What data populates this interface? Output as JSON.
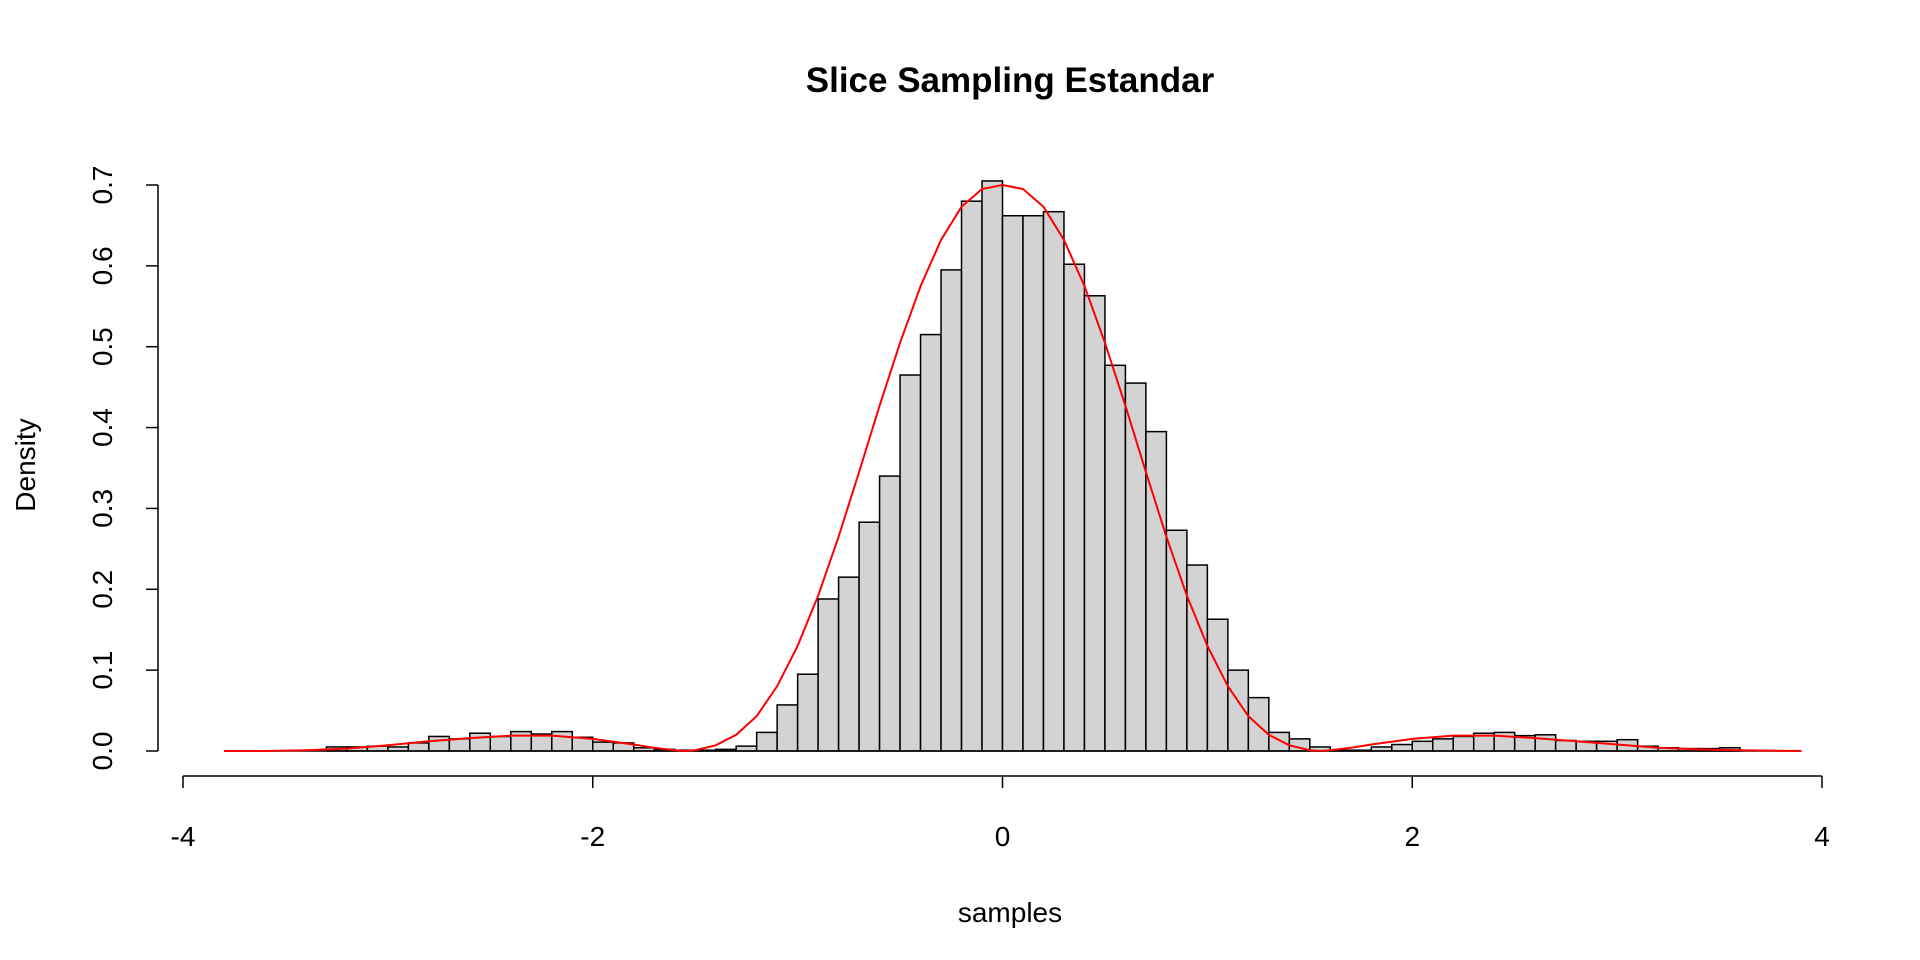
{
  "chart_data": {
    "type": "bar",
    "subtype": "histogram",
    "title": "Slice Sampling Estandar",
    "xlabel": "samples",
    "ylabel": "Density",
    "xlim": [
      -4,
      4
    ],
    "ylim": [
      0,
      0.7
    ],
    "x_ticks": [
      "-4",
      "-2",
      "0",
      "2",
      "4"
    ],
    "y_ticks": [
      "0.0",
      "0.1",
      "0.2",
      "0.3",
      "0.4",
      "0.5",
      "0.6",
      "0.7"
    ],
    "grid": false,
    "legend": "none",
    "bin_width": 0.1,
    "bins_start": [
      -3.3,
      -3.2,
      -3.1,
      -3.0,
      -2.9,
      -2.8,
      -2.7,
      -2.6,
      -2.5,
      -2.4,
      -2.3,
      -2.2,
      -2.1,
      -2.0,
      -1.9,
      -1.8,
      -1.7,
      -1.6,
      -1.5,
      -1.4,
      -1.3,
      -1.2,
      -1.1,
      -1.0,
      -0.9,
      -0.8,
      -0.7,
      -0.6,
      -0.5,
      -0.4,
      -0.3,
      -0.2,
      -0.1,
      0.0,
      0.1,
      0.2,
      0.3,
      0.4,
      0.5,
      0.6,
      0.7,
      0.8,
      0.9,
      1.0,
      1.1,
      1.2,
      1.3,
      1.4,
      1.5,
      1.6,
      1.7,
      1.8,
      1.9,
      2.0,
      2.1,
      2.2,
      2.3,
      2.4,
      2.5,
      2.6,
      2.7,
      2.8,
      2.9,
      3.0,
      3.1,
      3.2,
      3.3,
      3.4,
      3.5
    ],
    "density": [
      0.005,
      0.005,
      0.006,
      0.005,
      0.01,
      0.018,
      0.015,
      0.022,
      0.018,
      0.024,
      0.021,
      0.024,
      0.017,
      0.011,
      0.01,
      0.004,
      0.002,
      0.001,
      0.001,
      0.002,
      0.006,
      0.023,
      0.057,
      0.095,
      0.188,
      0.215,
      0.283,
      0.34,
      0.465,
      0.515,
      0.595,
      0.68,
      0.705,
      0.662,
      0.662,
      0.667,
      0.602,
      0.563,
      0.477,
      0.455,
      0.395,
      0.273,
      0.23,
      0.163,
      0.1,
      0.066,
      0.023,
      0.015,
      0.005,
      0.001,
      0.001,
      0.005,
      0.008,
      0.012,
      0.015,
      0.018,
      0.022,
      0.023,
      0.019,
      0.02,
      0.013,
      0.012,
      0.012,
      0.014,
      0.006,
      0.004,
      0.003,
      0.003,
      0.004
    ],
    "series": [
      {
        "name": "",
        "type": "line",
        "color": "#ff0000",
        "x": [
          -3.8,
          -3.6,
          -3.4,
          -3.2,
          -3.0,
          -2.8,
          -2.6,
          -2.4,
          -2.2,
          -2.0,
          -1.8,
          -1.7,
          -1.6,
          -1.55,
          -1.5,
          -1.4,
          -1.3,
          -1.2,
          -1.1,
          -1.0,
          -0.9,
          -0.8,
          -0.7,
          -0.6,
          -0.5,
          -0.4,
          -0.3,
          -0.2,
          -0.1,
          0.0,
          0.1,
          0.2,
          0.3,
          0.4,
          0.5,
          0.6,
          0.7,
          0.8,
          0.9,
          1.0,
          1.1,
          1.2,
          1.3,
          1.4,
          1.5,
          1.55,
          1.6,
          1.7,
          1.8,
          2.0,
          2.2,
          2.4,
          2.6,
          2.8,
          3.0,
          3.2,
          3.4,
          3.6,
          3.9
        ],
        "y": [
          0.0,
          0.0,
          0.001,
          0.003,
          0.007,
          0.012,
          0.016,
          0.019,
          0.019,
          0.015,
          0.008,
          0.004,
          0.001,
          0.0,
          0.001,
          0.007,
          0.02,
          0.043,
          0.08,
          0.13,
          0.192,
          0.265,
          0.345,
          0.427,
          0.505,
          0.575,
          0.632,
          0.673,
          0.695,
          0.7,
          0.695,
          0.673,
          0.632,
          0.575,
          0.505,
          0.427,
          0.345,
          0.265,
          0.192,
          0.13,
          0.08,
          0.043,
          0.02,
          0.007,
          0.001,
          0.0,
          0.001,
          0.004,
          0.008,
          0.015,
          0.019,
          0.019,
          0.016,
          0.012,
          0.008,
          0.004,
          0.002,
          0.001,
          0.0
        ]
      }
    ],
    "bar_fill": "#d3d3d3",
    "bar_stroke": "#000000"
  }
}
